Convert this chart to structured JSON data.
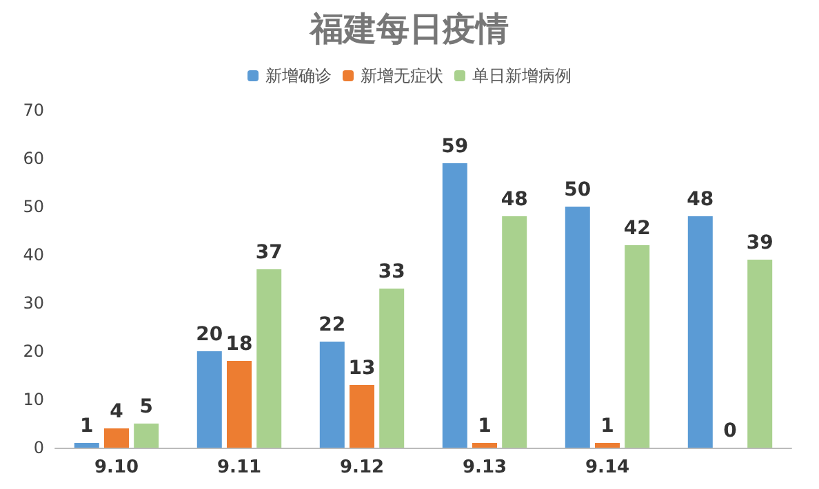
{
  "chart_data": {
    "type": "bar",
    "title": "福建每日疫情",
    "categories": [
      "9.10",
      "9.11",
      "9.12",
      "9.13",
      "9.14",
      null
    ],
    "series": [
      {
        "name": "新增确诊",
        "color": "#5b9bd5",
        "values": [
          1,
          20,
          22,
          59,
          50,
          48
        ]
      },
      {
        "name": "新增无症状",
        "color": "#ed7d31",
        "values": [
          4,
          18,
          13,
          1,
          1,
          0
        ]
      },
      {
        "name": "单日新增病例",
        "color": "#a9d18e",
        "values": [
          5,
          37,
          33,
          48,
          42,
          39
        ]
      }
    ],
    "ylim": [
      0,
      70
    ],
    "yticks": [
      0,
      10,
      20,
      30,
      40,
      50,
      60,
      70
    ],
    "grid": false,
    "legend": "top",
    "data_labels": true
  }
}
